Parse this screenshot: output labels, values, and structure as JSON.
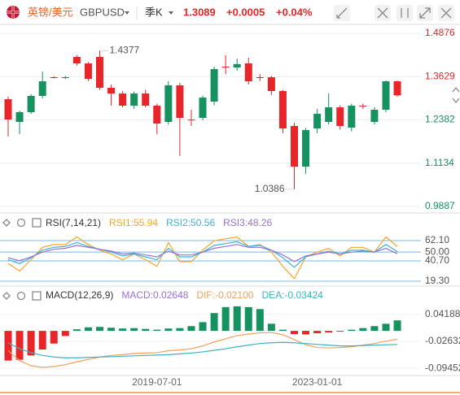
{
  "header": {
    "pair_name": "英镑/美元",
    "symbol": "GBPUSD",
    "period": "季K",
    "price": "1.3089",
    "change": "+0.0005",
    "change_pct": "+0.04%"
  },
  "chart_data": [
    {
      "type": "candlestick",
      "categories": [
        null,
        null,
        null,
        null,
        null,
        null,
        null,
        null,
        null,
        null,
        null,
        null,
        null,
        "2019-07-01",
        null,
        null,
        null,
        null,
        null,
        null,
        null,
        null,
        null,
        null,
        null,
        null,
        null,
        "2023-01-01",
        null,
        null,
        null,
        null,
        null,
        null,
        null
      ],
      "open": [
        1.2978,
        1.2323,
        1.2604,
        1.3072,
        1.3611,
        1.36,
        1.4196,
        1.4009,
        1.4196,
        1.3306,
        1.3142,
        1.2791,
        1.3142,
        1.2791,
        1.2323,
        1.3377,
        1.239,
        1.244,
        1.2908,
        1.3915,
        1.389,
        1.4009,
        1.3611,
        1.3611,
        1.3213,
        1.2206,
        1.1035,
        1.2135,
        1.2323,
        1.2744,
        1.2159,
        1.2791,
        1.2323,
        1.2674,
        1.3494
      ],
      "high": [
        1.305,
        1.265,
        1.312,
        1.3775,
        1.364,
        1.365,
        1.425,
        1.405,
        1.4377,
        1.34,
        1.3213,
        1.32,
        1.325,
        1.285,
        1.35,
        1.345,
        1.2674,
        1.308,
        1.3915,
        1.4248,
        1.415,
        1.417,
        1.37,
        1.365,
        1.325,
        1.23,
        1.215,
        1.27,
        1.315,
        1.28,
        1.285,
        1.285,
        1.275,
        1.352,
        1.352
      ],
      "low": [
        1.1901,
        1.1971,
        1.2557,
        1.3,
        1.358,
        1.356,
        1.395,
        1.35,
        1.325,
        1.2791,
        1.2744,
        1.27,
        1.2744,
        1.1971,
        1.225,
        1.1339,
        1.2206,
        1.2369,
        1.28,
        1.37,
        1.38,
        1.34,
        1.35,
        1.31,
        1.2,
        1.0386,
        1.0824,
        1.2,
        1.225,
        1.21,
        1.205,
        1.27,
        1.225,
        1.26,
        1.305
      ],
      "close": [
        1.2393,
        1.2604,
        1.3072,
        1.3494,
        1.36,
        1.3611,
        1.4009,
        1.3564,
        1.3306,
        1.3142,
        1.2791,
        1.3142,
        1.2791,
        1.2276,
        1.3377,
        1.244,
        1.2369,
        1.3025,
        1.3845,
        1.389,
        1.399,
        1.3494,
        1.359,
        1.3213,
        1.2135,
        1.1035,
        1.2088,
        1.2557,
        1.2744,
        1.2206,
        1.2791,
        1.278,
        1.2674,
        1.3494,
        1.3089
      ],
      "up_color": "#15925f",
      "down_color": "#e8262a",
      "ylim": [
        0.97,
        1.5134
      ],
      "yticks": [
        1.4876,
        1.3629,
        1.2382,
        1.1134,
        0.9887
      ],
      "grid": true
    },
    {
      "type": "line",
      "title": "RSI(7,14,21)",
      "series": [
        {
          "name": "RSI1:55.94",
          "color": "#f5a623",
          "values": [
            38,
            30,
            42,
            55,
            58,
            58,
            66,
            58,
            52,
            48,
            42,
            48,
            42,
            35,
            60,
            40,
            40,
            52,
            62,
            64,
            66,
            56,
            58,
            50,
            35,
            22,
            45,
            50,
            54,
            46,
            55,
            55,
            50,
            66,
            55.94
          ]
        },
        {
          "name": "RSI2:50.56",
          "color": "#3bb3d6",
          "values": [
            42,
            38,
            44,
            52,
            55,
            56,
            60,
            56,
            53,
            50,
            46,
            48,
            45,
            42,
            54,
            45,
            45,
            50,
            57,
            59,
            61,
            56,
            57,
            52,
            44,
            34,
            45,
            48,
            51,
            48,
            52,
            52,
            50,
            58,
            50.56
          ]
        },
        {
          "name": "RSI3:48.26",
          "color": "#9b6fd6",
          "values": [
            44,
            41,
            45,
            50,
            53,
            54,
            57,
            55,
            53,
            51,
            48,
            49,
            47,
            45,
            51,
            47,
            47,
            50,
            54,
            56,
            58,
            55,
            55,
            52,
            47,
            40,
            46,
            48,
            50,
            48,
            50,
            51,
            50,
            54,
            48.26
          ]
        }
      ],
      "ylim": [
        14.2,
        72.4
      ],
      "yticks": [
        {
          "value": 62.1,
          "label": "62.10"
        },
        {
          "value": 50,
          "label": "50.00"
        },
        {
          "value": 40.7,
          "label": "40.70"
        },
        {
          "value": 19.3,
          "label": "19.30"
        }
      ],
      "grid_color": "#7ab8e8"
    },
    {
      "type": "macd",
      "title": "MACD(12,26,9)",
      "series": [
        {
          "name": "MACD:0.02648",
          "color": "#9b6fd6",
          "up_color": "#15925f",
          "down_color": "#e8262a",
          "values": [
            -0.075,
            -0.073,
            -0.062,
            -0.047,
            -0.032,
            -0.013,
            0.004,
            0.009,
            0.01,
            0.008,
            0.006,
            0.007,
            0.005,
            0.003,
            0.006,
            0.007,
            0.012,
            0.022,
            0.045,
            0.06,
            0.062,
            0.06,
            0.055,
            0.018,
            0.003,
            -0.008,
            -0.009,
            -0.006,
            -0.004,
            -0.002,
            0.003,
            0.007,
            0.012,
            0.018,
            0.02648
          ]
        },
        {
          "name": "DIF:-0.02100",
          "color": "#f5a05a",
          "values": [
            -0.05,
            -0.075,
            -0.088,
            -0.092,
            -0.09,
            -0.085,
            -0.078,
            -0.072,
            -0.066,
            -0.062,
            -0.06,
            -0.057,
            -0.056,
            -0.055,
            -0.05,
            -0.048,
            -0.045,
            -0.038,
            -0.028,
            -0.02,
            -0.012,
            -0.008,
            -0.005,
            -0.004,
            -0.01,
            -0.022,
            -0.035,
            -0.042,
            -0.043,
            -0.042,
            -0.04,
            -0.036,
            -0.032,
            -0.026,
            -0.021
          ]
        },
        {
          "name": "DEA:-0.03424",
          "color": "#3bb3c6",
          "values": [
            -0.03,
            -0.045,
            -0.055,
            -0.062,
            -0.066,
            -0.068,
            -0.068,
            -0.067,
            -0.066,
            -0.065,
            -0.064,
            -0.063,
            -0.062,
            -0.061,
            -0.06,
            -0.058,
            -0.056,
            -0.053,
            -0.049,
            -0.045,
            -0.04,
            -0.036,
            -0.032,
            -0.03,
            -0.029,
            -0.03,
            -0.032,
            -0.034,
            -0.036,
            -0.038,
            -0.038,
            -0.037,
            -0.036,
            -0.035,
            -0.03424
          ]
        }
      ],
      "ylim": [
        -0.1126,
        0.072
      ],
      "yticks": [
        0.04188,
        -0.02632,
        -0.09452
      ]
    }
  ]
}
